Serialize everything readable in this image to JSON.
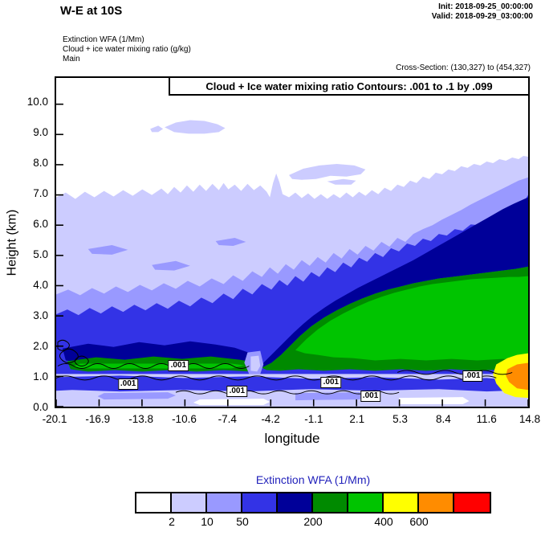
{
  "header": {
    "title": "W-E at 10S",
    "init": "Init: 2018-09-25_00:00:00",
    "valid": "Valid: 2018-09-29_03:00:00",
    "field_lines": [
      "Extinction WFA  (1/Mm)",
      "Cloud + ice water mixing ratio   (g/kg)",
      "Main"
    ],
    "cross_section": "Cross-Section: (130,327) to (454,327)"
  },
  "plot": {
    "annotation": "Cloud + Ice water mixing ratio Contours: .001 to .1 by .099",
    "ylabel": "Height (km)",
    "xlabel": "longitude",
    "yticks": [
      "0.0",
      "1.0",
      "2.0",
      "3.0",
      "4.0",
      "5.0",
      "6.0",
      "7.0",
      "8.0",
      "9.0",
      "10.0"
    ],
    "xticks": [
      "-20.1",
      "-16.9",
      "-13.8",
      "-10.6",
      "-7.4",
      "-4.2",
      "-1.1",
      "2.1",
      "5.3",
      "8.4",
      "11.6",
      "14.8"
    ]
  },
  "colorbar": {
    "title": "Extinction WFA  (1/Mm)",
    "title_color": "#2222bb",
    "colors": [
      "#ffffff",
      "#ccccff",
      "#9999ff",
      "#3333e6",
      "#000099",
      "#008a00",
      "#00c400",
      "#ffff00",
      "#ff8c00",
      "#ff0000"
    ],
    "tick_labels": [
      "2",
      "10",
      "50",
      "200",
      "400",
      "600"
    ],
    "tick_boundaries": [
      1,
      2,
      3,
      5,
      7,
      8
    ]
  },
  "chart_data": {
    "type": "heatmap",
    "title": "W-E at 10S",
    "fill_field": "Extinction WFA (1/Mm)",
    "overlay_field": "Cloud + Ice water mixing ratio (g/kg)",
    "overlay_contours": {
      "start": 0.001,
      "end": 0.1,
      "interval": 0.099,
      "label": ".001"
    },
    "x": {
      "label": "longitude",
      "min": -20.1,
      "max": 14.8,
      "ticks": [
        -20.1,
        -16.9,
        -13.8,
        -10.6,
        -7.4,
        -4.2,
        -1.1,
        2.1,
        5.3,
        8.4,
        11.6,
        14.8
      ]
    },
    "y": {
      "label": "Height (km)",
      "min": 0,
      "max": 10.9,
      "ticks": [
        0,
        1,
        2,
        3,
        4,
        5,
        6,
        7,
        8,
        9,
        10
      ]
    },
    "colorbar_labeled_levels": [
      2,
      10,
      50,
      200,
      400,
      600
    ],
    "palette": [
      "#ffffff",
      "#ccccff",
      "#9999ff",
      "#3333e6",
      "#000099",
      "#008a00",
      "#00c400",
      "#ffff00",
      "#ff8c00",
      "#ff0000"
    ],
    "cloud_contour_labels": [
      {
        "lon": -14.7,
        "km": 0.8
      },
      {
        "lon": -11.0,
        "km": 1.4
      },
      {
        "lon": -6.7,
        "km": 0.55
      },
      {
        "lon": 0.2,
        "km": 0.85
      },
      {
        "lon": 3.1,
        "km": 0.4
      },
      {
        "lon": 10.6,
        "km": 1.05
      }
    ],
    "cross_section_points": "(130,327) to (454,327)",
    "init_time": "2018-09-25_00:00:00",
    "valid_time": "2018-09-29_03:00:00",
    "description": "Filled contours of aerosol extinction rise from ~3 km at the west (left) to ~8 km at the east (right); highest values (yellow/orange) near 1 km at the far east edge; .001 g/kg cloud water contour runs along ~0.5-1.5 km height."
  }
}
